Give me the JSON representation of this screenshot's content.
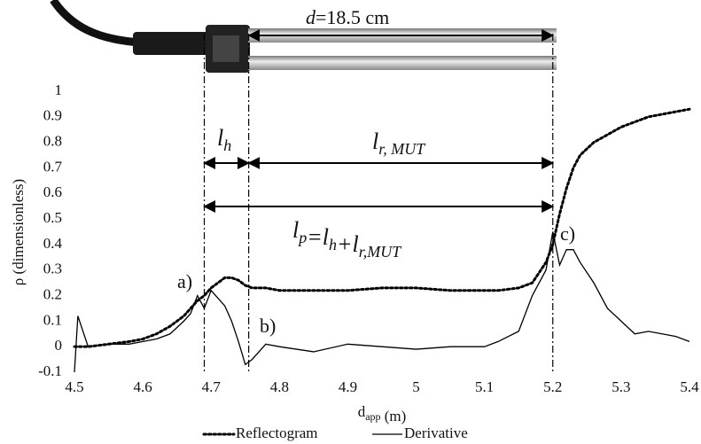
{
  "chart_data": {
    "type": "line",
    "x": [
      4.5,
      4.505,
      4.52,
      4.55,
      4.58,
      4.6,
      4.62,
      4.64,
      4.66,
      4.67,
      4.68,
      4.69,
      4.7,
      4.71,
      4.72,
      4.73,
      4.74,
      4.75,
      4.76,
      4.78,
      4.8,
      4.85,
      4.9,
      4.95,
      5,
      5.05,
      5.1,
      5.12,
      5.15,
      5.17,
      5.19,
      5.2,
      5.21,
      5.22,
      5.23,
      5.24,
      5.26,
      5.28,
      5.3,
      5.32,
      5.34,
      5.36,
      5.38,
      5.4
    ],
    "series": [
      {
        "name": "Reflectogram",
        "color": "#000000",
        "style": "dotted",
        "values": [
          0,
          0,
          0,
          0.01,
          0.02,
          0.03,
          0.05,
          0.08,
          0.12,
          0.15,
          0.18,
          0.2,
          0.23,
          0.25,
          0.27,
          0.27,
          0.26,
          0.24,
          0.23,
          0.23,
          0.22,
          0.22,
          0.22,
          0.23,
          0.23,
          0.22,
          0.22,
          0.22,
          0.23,
          0.25,
          0.33,
          0.4,
          0.52,
          0.62,
          0.7,
          0.75,
          0.8,
          0.83,
          0.86,
          0.88,
          0.9,
          0.91,
          0.92,
          0.93
        ]
      },
      {
        "name": "Derivative",
        "color": "#000000",
        "style": "solid",
        "values": [
          -0.1,
          0.12,
          0,
          0.01,
          0.01,
          0.02,
          0.03,
          0.05,
          0.1,
          0.13,
          0.2,
          0.15,
          0.22,
          0.19,
          0.16,
          0.1,
          0.02,
          -0.07,
          -0.05,
          0.01,
          0,
          -0.02,
          0.01,
          0,
          -0.01,
          0,
          0,
          0.02,
          0.06,
          0.2,
          0.3,
          0.45,
          0.32,
          0.38,
          0.38,
          0.33,
          0.25,
          0.15,
          0.1,
          0.05,
          0.06,
          0.05,
          0.04,
          0.02
        ]
      }
    ],
    "xlim": [
      4.5,
      5.4
    ],
    "xticks": [
      4.5,
      4.6,
      4.7,
      4.8,
      4.9,
      5,
      5.1,
      5.2,
      5.3,
      5.4
    ],
    "ylim": [
      -0.1,
      1
    ],
    "yticks": [
      -0.1,
      0,
      0.1,
      0.2,
      0.3,
      0.4,
      0.5,
      0.6,
      0.7,
      0.8,
      0.9,
      1
    ],
    "grid": false,
    "xlabel": [
      {
        "text": "d"
      },
      {
        "sub": "app"
      },
      {
        "text": " (m)"
      }
    ],
    "ylabel": "ρ (dimensionless)",
    "markers": [
      4.69,
      4.755,
      5.2
    ],
    "annotations": {
      "a": "a)",
      "b": "b)",
      "c": "c)",
      "d": [
        {
          "ital": "d"
        },
        {
          "text": "=18.5 cm"
        }
      ],
      "lh": [
        {
          "ital": "l"
        },
        {
          "sub": "h"
        }
      ],
      "lr": [
        {
          "ital": "l"
        },
        {
          "sub": "r, MUT"
        }
      ],
      "lp": [
        {
          "ital": "l"
        },
        {
          "sub": "p"
        },
        {
          "ital": "=l"
        },
        {
          "sub": "h"
        },
        {
          "ital": "+l"
        },
        {
          "sub": "r,MUT"
        }
      ]
    }
  }
}
